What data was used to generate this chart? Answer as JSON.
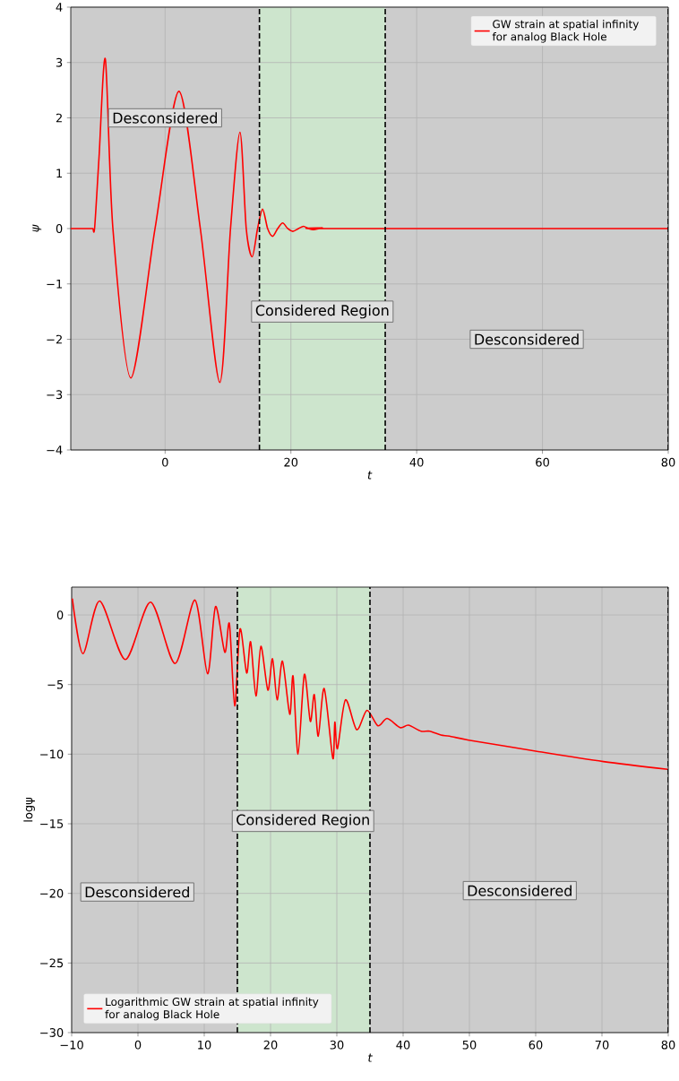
{
  "chart_data": [
    {
      "type": "line",
      "xlabel": "t",
      "ylabel": "ψ",
      "xlim": [
        -15,
        80
      ],
      "ylim": [
        -4,
        4
      ],
      "xticks": [
        0,
        20,
        40,
        60,
        80
      ],
      "yticks": [
        {
          "value": -4,
          "label": "−4"
        },
        {
          "value": -3,
          "label": "−3"
        },
        {
          "value": -2,
          "label": "−2"
        },
        {
          "value": -1,
          "label": "−1"
        },
        0,
        1,
        2,
        3,
        4
      ],
      "grid": true,
      "legend": "top right",
      "x": [
        -15,
        -12,
        -11.5,
        -11.2,
        -10.5,
        -9.5,
        -8.3,
        -5.45,
        -1.6,
        2.2,
        5.6,
        8.7,
        10.4,
        11.9,
        12.9,
        13.85,
        14.7,
        15.5,
        16.3,
        17.1,
        17.9,
        18.7,
        19.5,
        20.3,
        21.2,
        22,
        22.8,
        23.6,
        25,
        26,
        80
      ],
      "series": [
        {
          "name": "GW strain at spatial infinity for analog Black Hole",
          "color": "#ff0000",
          "values": [
            0,
            0,
            0,
            0.02,
            1.3,
            3.06,
            0,
            -2.7,
            0,
            2.48,
            0,
            -2.78,
            0,
            1.74,
            0,
            -0.51,
            0,
            0.35,
            0,
            -0.14,
            0,
            0.1,
            0,
            -0.05,
            0,
            0.04,
            0,
            -0.02,
            0.01,
            0,
            0
          ]
        }
      ],
      "bands": [
        {
          "axis": "x",
          "from": -15,
          "to": 15,
          "label": "Desconsidered",
          "color": "#cccccc"
        },
        {
          "axis": "x",
          "from": 15,
          "to": 35,
          "label": "Considered Region",
          "color": "#cde5cd"
        },
        {
          "axis": "x",
          "from": 35,
          "to": 80,
          "label": "Desconsidered",
          "color": "#cccccc"
        }
      ],
      "ref_lines": [
        {
          "axis": "x",
          "value": 15,
          "color": "#000000",
          "line_style": "dashed"
        },
        {
          "axis": "x",
          "value": 35,
          "color": "#000000",
          "line_style": "dashed"
        },
        {
          "axis": "x",
          "value": 80,
          "color": "#000000",
          "line_style": "dashed"
        }
      ]
    },
    {
      "type": "line",
      "xlabel": "t",
      "ylabel": "logψ",
      "xlim": [
        -10,
        80
      ],
      "ylim": [
        -30,
        2
      ],
      "xticks": [
        {
          "value": -10,
          "label": "−10"
        },
        0,
        10,
        20,
        30,
        40,
        50,
        60,
        70,
        80
      ],
      "yticks": [
        {
          "value": -30,
          "label": "−30"
        },
        {
          "value": -25,
          "label": "−25"
        },
        {
          "value": -20,
          "label": "−20"
        },
        {
          "value": -15,
          "label": "−15"
        },
        {
          "value": -10,
          "label": "−10"
        },
        {
          "value": -5,
          "label": "−5"
        },
        0
      ],
      "grid": true,
      "legend": "bottom left",
      "x": [
        -9.9,
        -8.3,
        -5.77,
        -1.9,
        1.9,
        5.6,
        8.6,
        10.5,
        11.7,
        13.1,
        13.8,
        14.6,
        15.4,
        16.4,
        17.0,
        17.8,
        18.55,
        19.6,
        20.3,
        21.0,
        21.8,
        22.9,
        23.4,
        24.15,
        25.1,
        26.0,
        26.6,
        27.2,
        28.1,
        29.4,
        29.7,
        30.1,
        31.3,
        33.0,
        34.55,
        36.2,
        37.6,
        39.55,
        40.8,
        42.7,
        44.0,
        45.7,
        47.0,
        49.9,
        60.0,
        70.2,
        79.9
      ],
      "series": [
        {
          "name": "Logarithmic GW strain at spatial infinity for analog Black Hole",
          "color": "#ff0000",
          "values": [
            1.18,
            -2.78,
            1.0,
            -3.2,
            0.92,
            -3.49,
            1.07,
            -4.22,
            0.6,
            -2.68,
            -0.64,
            -6.53,
            -1.01,
            -4.17,
            -1.93,
            -5.82,
            -2.25,
            -5.4,
            -3.15,
            -6.1,
            -3.32,
            -7.13,
            -4.39,
            -10.0,
            -4.28,
            -7.64,
            -5.72,
            -8.71,
            -5.29,
            -10.3,
            -7.7,
            -9.6,
            -6.1,
            -8.24,
            -6.85,
            -7.96,
            -7.43,
            -8.09,
            -7.92,
            -8.35,
            -8.35,
            -8.63,
            -8.71,
            -8.99,
            -9.78,
            -10.53,
            -11.09
          ]
        }
      ],
      "bands": [
        {
          "axis": "x",
          "from": -10,
          "to": 15,
          "label": "Desconsidered",
          "color": "#cccccc"
        },
        {
          "axis": "x",
          "from": 15,
          "to": 35,
          "label": "Considered Region",
          "color": "#cde5cd"
        },
        {
          "axis": "x",
          "from": 35,
          "to": 80,
          "label": "Desconsidered",
          "color": "#cccccc"
        }
      ],
      "ref_lines": [
        {
          "axis": "x",
          "value": 15,
          "color": "#000000",
          "line_style": "dashed"
        },
        {
          "axis": "x",
          "value": 35,
          "color": "#000000",
          "line_style": "dashed"
        },
        {
          "axis": "x",
          "value": 80,
          "color": "#000000",
          "line_style": "dashed"
        }
      ]
    }
  ]
}
